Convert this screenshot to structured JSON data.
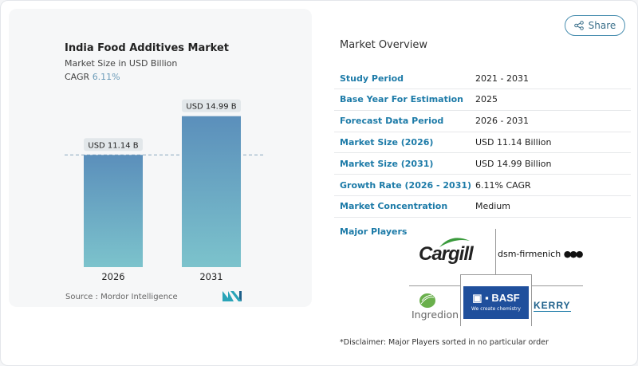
{
  "header": {
    "share_label": "Share",
    "share_icon": "share-icon"
  },
  "chart_data": {
    "type": "bar",
    "title": "India Food Additives Market",
    "subtitle": "Market Size in USD Billion",
    "cagr_label": "CAGR",
    "cagr_value": "6.11%",
    "categories": [
      "2026",
      "2031"
    ],
    "values": [
      11.14,
      14.99
    ],
    "data_labels": [
      "USD 11.14 B",
      "USD 14.99 B"
    ],
    "colors": {
      "top": "#5b8fbb",
      "bottom": "#7cc3cc"
    },
    "ylim": [
      0,
      15.5
    ],
    "reference_line": "dashed at first bar value",
    "source": "Source :  Mordor Intelligence"
  },
  "overview": {
    "title": "Market Overview",
    "rows": [
      {
        "k": "Study Period",
        "v": "2021 - 2031"
      },
      {
        "k": "Base Year For Estimation",
        "v": "2025"
      },
      {
        "k": "Forecast Data Period",
        "v": "2026 - 2031"
      },
      {
        "k": "Market Size (2026)",
        "v": "USD 11.14 Billion"
      },
      {
        "k": "Market Size (2031)",
        "v": "USD 14.99 Billion"
      },
      {
        "k": "Growth Rate (2026 - 2031)",
        "v": "6.11% CAGR"
      },
      {
        "k": "Market Concentration",
        "v": "Medium"
      }
    ],
    "major_players_label": "Major Players",
    "players": [
      "Cargill",
      "dsm-firmenich",
      "Ingredion",
      "BASF",
      "Kerry"
    ],
    "basf_tagline": "We create chemistry",
    "disclaimer": "*Disclaimer: Major Players sorted in no particular order"
  }
}
